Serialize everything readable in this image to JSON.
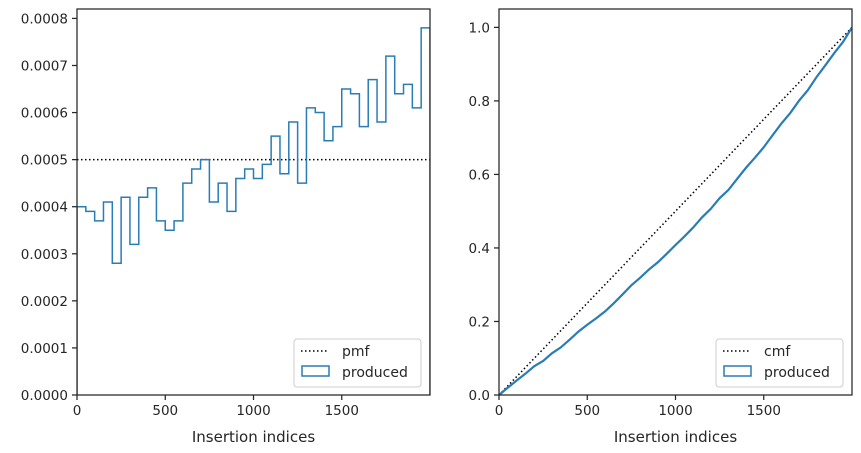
{
  "colors": {
    "series": "#2a7cb5",
    "reference": "#000000",
    "axes": "#262626"
  },
  "chart_data": [
    {
      "type": "line",
      "xlabel": "Insertion indices",
      "xlim": [
        0,
        2000
      ],
      "ylim": [
        0,
        0.00082
      ],
      "xticks": [
        0,
        500,
        1000,
        1500
      ],
      "yticks": [
        0.0,
        0.0001,
        0.0002,
        0.0003,
        0.0004,
        0.0005,
        0.0006,
        0.0007,
        0.0008
      ],
      "xtick_labels": [
        "0",
        "500",
        "1000",
        "1500"
      ],
      "ytick_labels": [
        "0.0000",
        "0.0001",
        "0.0002",
        "0.0003",
        "0.0004",
        "0.0005",
        "0.0006",
        "0.0007",
        "0.0008"
      ],
      "legend_position": "lower right",
      "grid": false,
      "series": [
        {
          "name": "pmf",
          "style": "dotted",
          "x": [
            0,
            2000
          ],
          "y": [
            0.0005,
            0.0005
          ]
        },
        {
          "name": "produced",
          "style": "step-histogram",
          "bin_edges": [
            0,
            50,
            100,
            150,
            200,
            250,
            300,
            350,
            400,
            450,
            500,
            550,
            600,
            650,
            700,
            750,
            800,
            850,
            900,
            950,
            1000,
            1050,
            1100,
            1150,
            1200,
            1250,
            1300,
            1350,
            1400,
            1450,
            1500,
            1550,
            1600,
            1650,
            1700,
            1750,
            1800,
            1850,
            1900,
            1950,
            2000
          ],
          "values": [
            0.0004,
            0.00039,
            0.00037,
            0.00041,
            0.00028,
            0.00042,
            0.00032,
            0.00042,
            0.00044,
            0.00037,
            0.00035,
            0.00037,
            0.00045,
            0.00048,
            0.0005,
            0.00041,
            0.00045,
            0.00039,
            0.00046,
            0.00048,
            0.00046,
            0.00049,
            0.00055,
            0.00047,
            0.00058,
            0.00045,
            0.00061,
            0.0006,
            0.00054,
            0.00057,
            0.00065,
            0.00064,
            0.00057,
            0.00067,
            0.00058,
            0.00072,
            0.00064,
            0.00066,
            0.00061,
            0.00078
          ]
        }
      ]
    },
    {
      "type": "line",
      "xlabel": "Insertion indices",
      "xlim": [
        0,
        2000
      ],
      "ylim": [
        0,
        1.05
      ],
      "xticks": [
        0,
        500,
        1000,
        1500
      ],
      "yticks": [
        0.0,
        0.2,
        0.4,
        0.6,
        0.8,
        1.0
      ],
      "xtick_labels": [
        "0",
        "500",
        "1000",
        "1500"
      ],
      "ytick_labels": [
        "0.0",
        "0.2",
        "0.4",
        "0.6",
        "0.8",
        "1.0"
      ],
      "legend_position": "lower right",
      "grid": false,
      "series": [
        {
          "name": "cmf",
          "style": "dotted",
          "x": [
            0,
            2000
          ],
          "y": [
            0.0,
            1.0
          ]
        },
        {
          "name": "produced",
          "style": "step-cumulative",
          "x": [
            0,
            50,
            100,
            150,
            200,
            250,
            300,
            350,
            400,
            450,
            500,
            550,
            600,
            650,
            700,
            750,
            800,
            850,
            900,
            950,
            1000,
            1050,
            1100,
            1150,
            1200,
            1250,
            1300,
            1350,
            1400,
            1450,
            1500,
            1550,
            1600,
            1650,
            1700,
            1750,
            1800,
            1850,
            1900,
            1950,
            2000
          ],
          "y": [
            0.0,
            0.02,
            0.0395,
            0.058,
            0.0785,
            0.0925,
            0.1135,
            0.1295,
            0.1505,
            0.1725,
            0.191,
            0.2085,
            0.227,
            0.2495,
            0.2735,
            0.2985,
            0.319,
            0.3415,
            0.361,
            0.384,
            0.408,
            0.431,
            0.4555,
            0.483,
            0.5065,
            0.5355,
            0.558,
            0.5885,
            0.6185,
            0.6455,
            0.674,
            0.7065,
            0.7385,
            0.767,
            0.8005,
            0.8295,
            0.8655,
            0.8975,
            0.9305,
            0.961,
            1.0
          ]
        }
      ]
    }
  ]
}
